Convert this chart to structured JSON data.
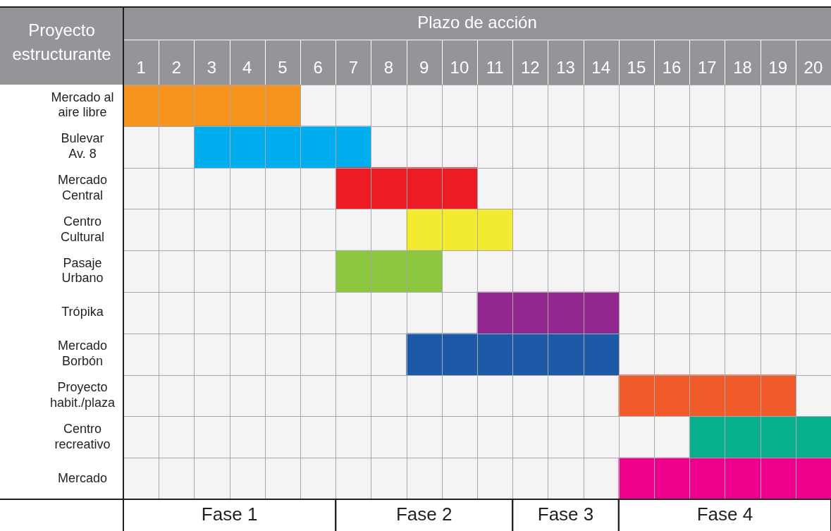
{
  "chart_data": {
    "type": "bar",
    "orientation": "horizontal",
    "xlabel": "Plazo de acción",
    "ylabel": "Proyecto estructurante",
    "categories": [
      "Mercado al aire libre",
      "Bulevar Av. 8",
      "Mercado Central",
      "Centro Cultural",
      "Pasaje Urbano",
      "Trópika",
      "Mercado Borbón",
      "Proyecto habit./plaza",
      "Centro recreativo",
      "Mercado"
    ],
    "base": [
      0,
      2,
      6,
      8,
      6,
      10,
      8,
      14,
      16,
      14
    ],
    "values": [
      5,
      5,
      4,
      3,
      3,
      4,
      6,
      5,
      4,
      6
    ],
    "colors": [
      "#f7941d",
      "#00aeef",
      "#ed1c24",
      "#f2eb2f",
      "#8dc63f",
      "#92278f",
      "#1c5aa8",
      "#f15a29",
      "#06b08f",
      "#ec008c"
    ],
    "xlim": [
      0,
      20
    ],
    "xticks": [
      {
        "value": 0.5,
        "label": "1"
      },
      {
        "value": 1.5,
        "label": "2"
      },
      {
        "value": 2.5,
        "label": "3"
      },
      {
        "value": 3.5,
        "label": "4"
      },
      {
        "value": 4.5,
        "label": "5"
      },
      {
        "value": 5.5,
        "label": "6"
      },
      {
        "value": 6.5,
        "label": "7"
      },
      {
        "value": 7.5,
        "label": "8"
      },
      {
        "value": 8.5,
        "label": "9"
      },
      {
        "value": 9.5,
        "label": "10"
      },
      {
        "value": 10.5,
        "label": "11"
      },
      {
        "value": 11.5,
        "label": "12"
      },
      {
        "value": 12.5,
        "label": "13"
      },
      {
        "value": 13.5,
        "label": "14"
      },
      {
        "value": 14.5,
        "label": "15"
      },
      {
        "value": 15.5,
        "label": "16"
      },
      {
        "value": 16.5,
        "label": "17"
      },
      {
        "value": 17.5,
        "label": "18"
      },
      {
        "value": 18.5,
        "label": "19"
      },
      {
        "value": 19.5,
        "label": "20"
      }
    ],
    "bands": [
      {
        "axis": "x",
        "from": 0,
        "to": 6,
        "label": "Fase 1",
        "color": "#f4f4f4"
      },
      {
        "axis": "x",
        "from": 6,
        "to": 11,
        "label": "Fase 2",
        "color": "#f4f4f4"
      },
      {
        "axis": "x",
        "from": 11,
        "to": 14,
        "label": "Fase 3",
        "color": "#f4f4f4"
      },
      {
        "axis": "x",
        "from": 14,
        "to": 20,
        "label": "Fase 4",
        "color": "#f4f4f4"
      }
    ],
    "grid": true,
    "legend": false
  }
}
